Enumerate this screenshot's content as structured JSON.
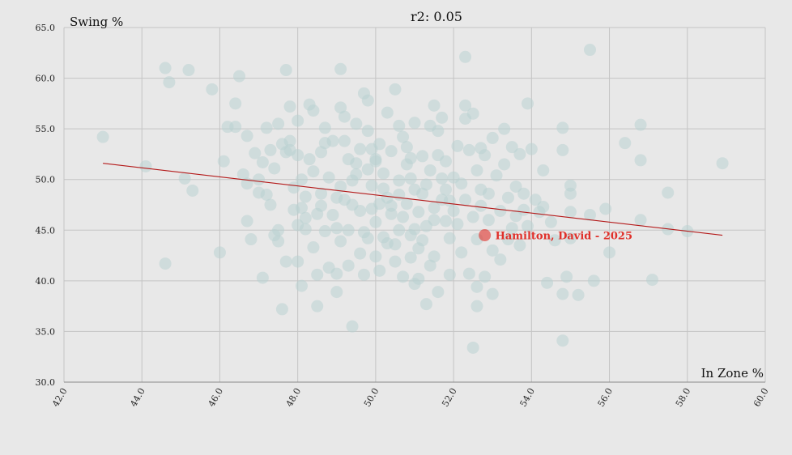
{
  "chart_data": {
    "type": "scatter",
    "title": "r2: 0.05",
    "xlabel": "In Zone %",
    "ylabel": "Swing %",
    "xlim": [
      42,
      60
    ],
    "ylim": [
      30,
      65
    ],
    "x_ticks": [
      "42.0",
      "44.0",
      "46.0",
      "48.0",
      "50.0",
      "52.0",
      "54.0",
      "56.0",
      "58.0",
      "60.0"
    ],
    "y_ticks": [
      "30.0",
      "35.0",
      "40.0",
      "45.0",
      "50.0",
      "55.0",
      "60.0",
      "65.0"
    ],
    "grid": true,
    "point_color": "#b9d2d1",
    "trend_color": "#b41a1a",
    "highlight_color": "#e0302a",
    "trendline": {
      "x1": 43.0,
      "y1": 51.6,
      "x2": 58.9,
      "y2": 44.5
    },
    "highlight": {
      "label": "Hamilton, David - 2025",
      "x": 52.8,
      "y": 44.5
    },
    "points": [
      [
        43.0,
        54.2
      ],
      [
        44.1,
        51.3
      ],
      [
        44.6,
        61.0
      ],
      [
        44.7,
        59.6
      ],
      [
        44.6,
        41.7
      ],
      [
        45.1,
        50.1
      ],
      [
        45.2,
        60.8
      ],
      [
        45.3,
        48.9
      ],
      [
        45.8,
        58.9
      ],
      [
        46.0,
        42.8
      ],
      [
        46.1,
        51.8
      ],
      [
        46.2,
        55.2
      ],
      [
        46.4,
        55.2
      ],
      [
        46.4,
        57.5
      ],
      [
        46.5,
        60.2
      ],
      [
        46.6,
        50.5
      ],
      [
        46.7,
        54.3
      ],
      [
        46.7,
        49.6
      ],
      [
        46.7,
        45.9
      ],
      [
        46.8,
        44.1
      ],
      [
        46.9,
        52.6
      ],
      [
        47.0,
        48.7
      ],
      [
        47.0,
        50.0
      ],
      [
        47.1,
        40.3
      ],
      [
        47.1,
        51.7
      ],
      [
        47.2,
        48.5
      ],
      [
        47.2,
        55.1
      ],
      [
        47.3,
        52.9
      ],
      [
        47.4,
        44.5
      ],
      [
        47.4,
        51.1
      ],
      [
        47.5,
        55.5
      ],
      [
        47.5,
        45.0
      ],
      [
        47.5,
        43.9
      ],
      [
        47.6,
        37.2
      ],
      [
        47.6,
        53.5
      ],
      [
        47.7,
        41.9
      ],
      [
        47.7,
        60.8
      ],
      [
        47.7,
        52.7
      ],
      [
        47.8,
        57.2
      ],
      [
        47.8,
        53.8
      ],
      [
        47.8,
        52.9
      ],
      [
        47.9,
        49.2
      ],
      [
        47.9,
        47.0
      ],
      [
        48.0,
        41.9
      ],
      [
        48.0,
        45.5
      ],
      [
        48.0,
        55.8
      ],
      [
        48.0,
        52.4
      ],
      [
        48.1,
        39.5
      ],
      [
        48.1,
        47.2
      ],
      [
        48.1,
        50.0
      ],
      [
        48.2,
        46.2
      ],
      [
        48.2,
        45.1
      ],
      [
        48.3,
        57.4
      ],
      [
        48.3,
        52.0
      ],
      [
        48.4,
        56.8
      ],
      [
        48.4,
        43.3
      ],
      [
        48.5,
        40.6
      ],
      [
        48.5,
        37.5
      ],
      [
        48.5,
        46.6
      ],
      [
        48.6,
        48.6
      ],
      [
        48.6,
        52.7
      ],
      [
        48.6,
        47.4
      ],
      [
        48.7,
        55.1
      ],
      [
        48.7,
        53.6
      ],
      [
        48.8,
        50.2
      ],
      [
        48.9,
        53.8
      ],
      [
        49.0,
        45.2
      ],
      [
        49.0,
        40.7
      ],
      [
        49.0,
        38.9
      ],
      [
        49.1,
        57.1
      ],
      [
        49.1,
        49.3
      ],
      [
        49.1,
        60.9
      ],
      [
        49.2,
        56.2
      ],
      [
        49.2,
        53.8
      ],
      [
        49.2,
        48.0
      ],
      [
        49.3,
        52.0
      ],
      [
        49.3,
        45.0
      ],
      [
        49.3,
        41.5
      ],
      [
        49.4,
        35.5
      ],
      [
        49.4,
        47.5
      ],
      [
        49.5,
        50.5
      ],
      [
        49.5,
        55.5
      ],
      [
        49.6,
        53.0
      ],
      [
        49.6,
        46.9
      ],
      [
        49.7,
        58.5
      ],
      [
        49.7,
        44.8
      ],
      [
        49.8,
        57.8
      ],
      [
        49.8,
        54.8
      ],
      [
        49.8,
        51.0
      ],
      [
        49.9,
        49.4
      ],
      [
        49.9,
        47.1
      ],
      [
        50.0,
        42.4
      ],
      [
        50.0,
        52.0
      ],
      [
        50.0,
        45.8
      ],
      [
        50.1,
        41.0
      ],
      [
        50.1,
        53.5
      ],
      [
        50.2,
        44.3
      ],
      [
        50.2,
        50.6
      ],
      [
        50.3,
        56.6
      ],
      [
        50.3,
        48.2
      ],
      [
        50.4,
        52.8
      ],
      [
        50.4,
        46.6
      ],
      [
        50.5,
        43.6
      ],
      [
        50.5,
        58.9
      ],
      [
        50.6,
        49.9
      ],
      [
        50.6,
        45.0
      ],
      [
        50.7,
        54.2
      ],
      [
        50.7,
        40.4
      ],
      [
        50.8,
        51.5
      ],
      [
        50.8,
        47.6
      ],
      [
        50.9,
        44.5
      ],
      [
        50.9,
        42.3
      ],
      [
        51.0,
        55.6
      ],
      [
        51.0,
        49.0
      ],
      [
        51.0,
        39.7
      ],
      [
        51.1,
        46.8
      ],
      [
        51.1,
        43.2
      ],
      [
        51.2,
        52.3
      ],
      [
        51.2,
        48.6
      ],
      [
        51.3,
        45.4
      ],
      [
        51.3,
        37.7
      ],
      [
        51.4,
        55.3
      ],
      [
        51.4,
        50.9
      ],
      [
        51.5,
        57.3
      ],
      [
        51.5,
        47.2
      ],
      [
        51.5,
        42.4
      ],
      [
        51.6,
        54.8
      ],
      [
        51.6,
        38.9
      ],
      [
        51.7,
        50.1
      ],
      [
        51.7,
        48.0
      ],
      [
        51.8,
        45.9
      ],
      [
        51.8,
        51.8
      ],
      [
        51.9,
        44.2
      ],
      [
        51.9,
        40.6
      ],
      [
        52.0,
        46.9
      ],
      [
        52.1,
        53.3
      ],
      [
        52.2,
        49.6
      ],
      [
        52.3,
        48.0
      ],
      [
        52.3,
        62.1
      ],
      [
        52.3,
        57.3
      ],
      [
        52.3,
        56.0
      ],
      [
        52.4,
        52.9
      ],
      [
        52.4,
        40.7
      ],
      [
        52.5,
        46.3
      ],
      [
        52.5,
        33.4
      ],
      [
        52.5,
        56.5
      ],
      [
        52.6,
        50.9
      ],
      [
        52.6,
        37.5
      ],
      [
        52.6,
        39.4
      ],
      [
        52.7,
        53.1
      ],
      [
        52.7,
        47.4
      ],
      [
        52.8,
        52.4
      ],
      [
        52.8,
        40.4
      ],
      [
        52.9,
        48.6
      ],
      [
        53.0,
        54.1
      ],
      [
        53.0,
        43.0
      ],
      [
        53.0,
        38.7
      ],
      [
        53.1,
        50.4
      ],
      [
        53.2,
        46.9
      ],
      [
        53.2,
        42.1
      ],
      [
        53.3,
        55.0
      ],
      [
        53.3,
        51.5
      ],
      [
        53.4,
        48.2
      ],
      [
        53.5,
        53.2
      ],
      [
        53.5,
        45.2
      ],
      [
        53.6,
        49.3
      ],
      [
        53.7,
        52.5
      ],
      [
        53.7,
        43.5
      ],
      [
        53.8,
        47.0
      ],
      [
        53.8,
        48.6
      ],
      [
        53.9,
        57.5
      ],
      [
        53.9,
        45.4
      ],
      [
        54.0,
        53.0
      ],
      [
        54.1,
        48.0
      ],
      [
        54.3,
        50.9
      ],
      [
        54.3,
        47.3
      ],
      [
        54.4,
        39.8
      ],
      [
        54.5,
        45.8
      ],
      [
        54.6,
        44.0
      ],
      [
        54.8,
        55.1
      ],
      [
        54.8,
        52.9
      ],
      [
        54.8,
        38.7
      ],
      [
        54.8,
        34.1
      ],
      [
        54.9,
        40.4
      ],
      [
        55.0,
        49.4
      ],
      [
        55.0,
        48.6
      ],
      [
        55.0,
        46.8
      ],
      [
        55.0,
        44.2
      ],
      [
        55.2,
        38.6
      ],
      [
        55.5,
        62.8
      ],
      [
        55.5,
        46.5
      ],
      [
        55.6,
        40.0
      ],
      [
        55.9,
        47.1
      ],
      [
        56.0,
        42.8
      ],
      [
        56.4,
        53.6
      ],
      [
        56.8,
        55.4
      ],
      [
        56.8,
        51.9
      ],
      [
        56.8,
        46.0
      ],
      [
        57.1,
        40.1
      ],
      [
        57.5,
        48.7
      ],
      [
        57.5,
        45.1
      ],
      [
        58.0,
        44.9
      ],
      [
        58.9,
        51.6
      ],
      [
        50.4,
        47.4
      ],
      [
        50.6,
        48.5
      ],
      [
        51.0,
        45.1
      ],
      [
        51.3,
        49.5
      ],
      [
        51.8,
        49.0
      ],
      [
        49.5,
        51.6
      ],
      [
        50.0,
        51.8
      ],
      [
        49.0,
        48.2
      ],
      [
        48.9,
        46.5
      ],
      [
        50.8,
        53.2
      ],
      [
        51.6,
        52.4
      ],
      [
        52.1,
        45.6
      ],
      [
        49.8,
        44.2
      ],
      [
        50.2,
        49.1
      ],
      [
        50.9,
        50.1
      ],
      [
        51.2,
        44.0
      ],
      [
        50.5,
        41.9
      ],
      [
        49.6,
        42.7
      ],
      [
        48.7,
        44.9
      ],
      [
        48.8,
        41.3
      ],
      [
        49.7,
        40.6
      ],
      [
        50.7,
        46.3
      ],
      [
        51.9,
        47.9
      ],
      [
        52.6,
        44.1
      ],
      [
        52.9,
        46.0
      ],
      [
        53.4,
        44.1
      ],
      [
        52.2,
        42.8
      ],
      [
        51.4,
        41.5
      ],
      [
        51.1,
        40.2
      ],
      [
        50.3,
        43.7
      ],
      [
        49.1,
        43.9
      ],
      [
        48.4,
        50.8
      ],
      [
        48.2,
        48.3
      ],
      [
        47.3,
        47.5
      ],
      [
        49.9,
        53.0
      ],
      [
        50.6,
        55.3
      ],
      [
        51.7,
        56.1
      ],
      [
        52.0,
        50.2
      ],
      [
        52.7,
        49.0
      ],
      [
        53.6,
        46.4
      ],
      [
        54.2,
        46.8
      ],
      [
        49.4,
        49.9
      ],
      [
        50.9,
        52.1
      ],
      [
        51.5,
        46.0
      ],
      [
        50.1,
        47.6
      ]
    ]
  }
}
